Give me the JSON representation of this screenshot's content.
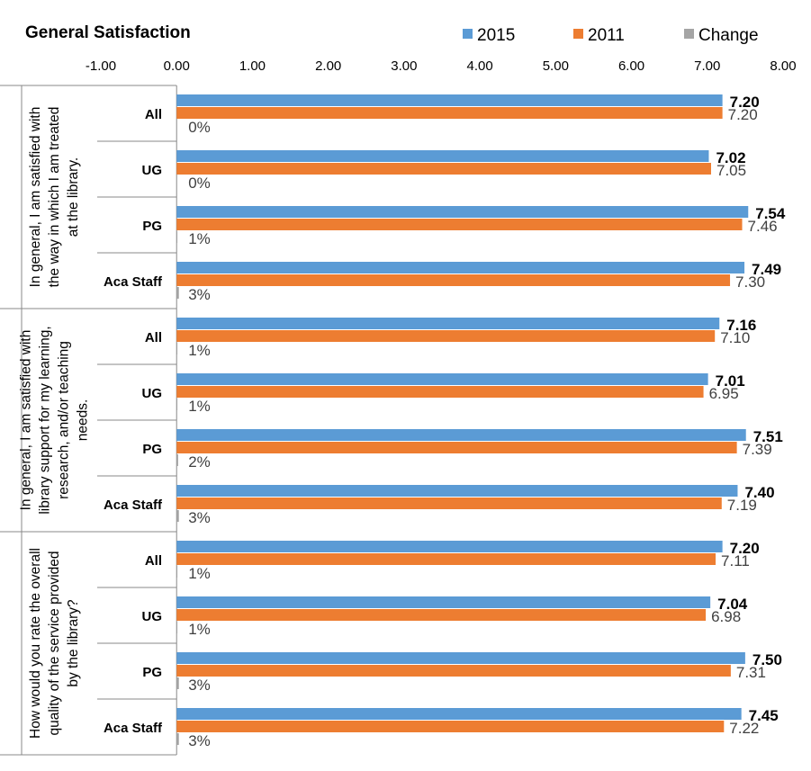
{
  "chart_data": {
    "type": "bar",
    "orientation": "horizontal",
    "title": "General Satisfaction",
    "xlim": [
      -1,
      8
    ],
    "x_ticks": [
      "-1.00",
      "0.00",
      "1.00",
      "2.00",
      "3.00",
      "4.00",
      "5.00",
      "6.00",
      "7.00",
      "8.00"
    ],
    "x_tick_values": [
      -1,
      0,
      1,
      2,
      3,
      4,
      5,
      6,
      7,
      8
    ],
    "legend_position": "top-right",
    "series": [
      {
        "name": "2015",
        "color": "#5B9BD5"
      },
      {
        "name": "2011",
        "color": "#ED7D31"
      },
      {
        "name": "Change",
        "color": "#A5A5A5"
      }
    ],
    "groups": [
      {
        "label": "In general, I am satisfied with the way in which I am treated at the library.",
        "label_lines": [
          "In general, I am satisfied with",
          "the way in which I am treated",
          "at the library."
        ],
        "categories": [
          {
            "label": "All",
            "v2015": 7.2,
            "v2011": 7.2,
            "change": 0.0,
            "l2015": "7.20",
            "l2011": "7.20",
            "lchange": "0%"
          },
          {
            "label": "UG",
            "v2015": 7.02,
            "v2011": 7.05,
            "change": 0.0,
            "l2015": "7.02",
            "l2011": "7.05",
            "lchange": "0%"
          },
          {
            "label": "PG",
            "v2015": 7.54,
            "v2011": 7.46,
            "change": 0.01,
            "l2015": "7.54",
            "l2011": "7.46",
            "lchange": "1%"
          },
          {
            "label": "Aca Staff",
            "v2015": 7.49,
            "v2011": 7.3,
            "change": 0.03,
            "l2015": "7.49",
            "l2011": "7.30",
            "lchange": "3%"
          }
        ]
      },
      {
        "label": "In general, I am satisfied with library support for my learning, research, and/or teaching needs.",
        "label_lines": [
          "In general, I am satisfied with",
          "library support for my learning,",
          "research, and/or teaching",
          "needs."
        ],
        "categories": [
          {
            "label": "All",
            "v2015": 7.16,
            "v2011": 7.1,
            "change": 0.01,
            "l2015": "7.16",
            "l2011": "7.10",
            "lchange": "1%"
          },
          {
            "label": "UG",
            "v2015": 7.01,
            "v2011": 6.95,
            "change": 0.01,
            "l2015": "7.01",
            "l2011": "6.95",
            "lchange": "1%"
          },
          {
            "label": "PG",
            "v2015": 7.51,
            "v2011": 7.39,
            "change": 0.02,
            "l2015": "7.51",
            "l2011": "7.39",
            "lchange": "2%"
          },
          {
            "label": "Aca Staff",
            "v2015": 7.4,
            "v2011": 7.19,
            "change": 0.03,
            "l2015": "7.40",
            "l2011": "7.19",
            "lchange": "3%"
          }
        ]
      },
      {
        "label": "How would you rate the overall quality of the service provided by the library?",
        "label_lines": [
          "How would you rate the overall",
          "quality of the service provided",
          "by the library?"
        ],
        "categories": [
          {
            "label": "All",
            "v2015": 7.2,
            "v2011": 7.11,
            "change": 0.01,
            "l2015": "7.20",
            "l2011": "7.11",
            "lchange": "1%"
          },
          {
            "label": "UG",
            "v2015": 7.04,
            "v2011": 6.98,
            "change": 0.01,
            "l2015": "7.04",
            "l2011": "6.98",
            "lchange": "1%"
          },
          {
            "label": "PG",
            "v2015": 7.5,
            "v2011": 7.31,
            "change": 0.03,
            "l2015": "7.50",
            "l2011": "7.31",
            "lchange": "3%"
          },
          {
            "label": "Aca Staff",
            "v2015": 7.45,
            "v2011": 7.22,
            "change": 0.03,
            "l2015": "7.45",
            "l2011": "7.22",
            "lchange": "3%"
          }
        ]
      }
    ]
  }
}
